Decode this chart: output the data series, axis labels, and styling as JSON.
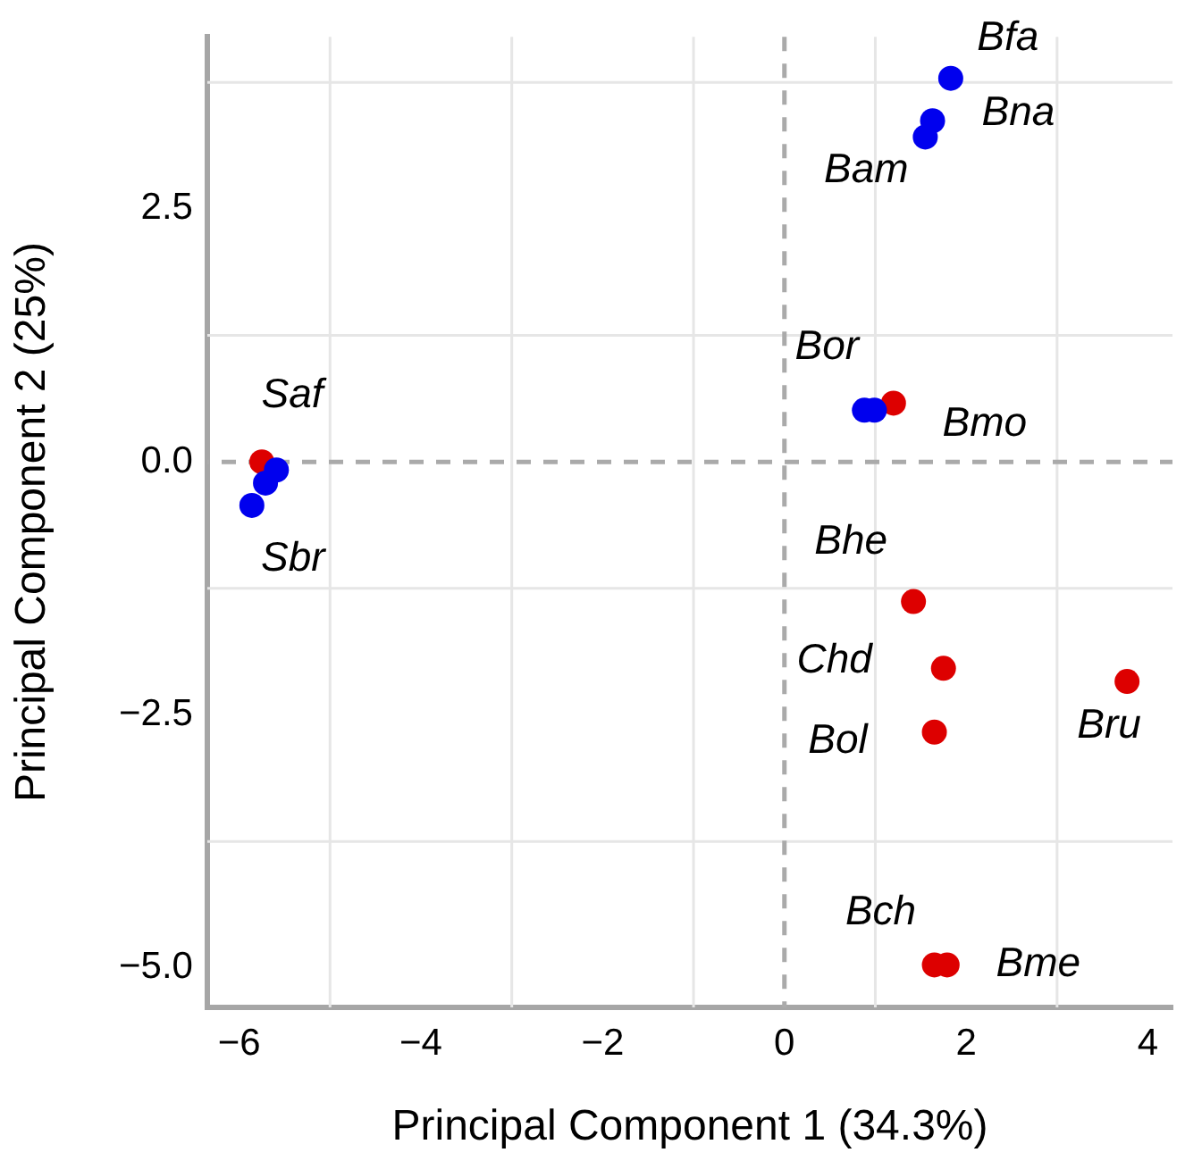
{
  "chart_data": {
    "type": "scatter",
    "xlabel": "Principal Component 1 (34.3%)",
    "ylabel": "Principal Component 2 (25%)",
    "xlim": [
      -6.35,
      4.27
    ],
    "ylim": [
      -5.39,
      4.2
    ],
    "xticks": [
      {
        "value": -6,
        "label": "−6"
      },
      {
        "value": -4,
        "label": "−4"
      },
      {
        "value": -2,
        "label": "−2"
      },
      0,
      2,
      4
    ],
    "yticks": [
      {
        "value": -5,
        "label": "−5.0"
      },
      {
        "value": -2.5,
        "label": "−2.5"
      },
      {
        "value": 0,
        "label": "0.0"
      },
      2.5
    ],
    "grid": true,
    "legend": false,
    "marker": "circle",
    "series": [
      {
        "color": "#0000ee",
        "x": [
          1.83,
          1.63,
          1.55,
          0.88,
          0.99,
          -5.59,
          -5.71,
          -5.86
        ],
        "values": [
          3.79,
          3.37,
          3.21,
          0.51,
          0.51,
          -0.08,
          -0.21,
          -0.43
        ]
      },
      {
        "color": "#dd0000",
        "x": [
          1.2,
          -5.75,
          1.42,
          1.75,
          3.77,
          1.65,
          1.65,
          1.79
        ],
        "values": [
          0.58,
          0.0,
          -1.38,
          -2.04,
          -2.17,
          -2.67,
          -4.97,
          -4.97
        ]
      }
    ],
    "ref_lines": [
      {
        "axis": "x",
        "value": 0,
        "color": "#aaaaaa",
        "line_style": "dashed"
      },
      {
        "axis": "y",
        "value": 0,
        "color": "#aaaaaa",
        "line_style": "dashed"
      }
    ],
    "annotations": [
      {
        "text": "Bfa",
        "x": 1.83,
        "y": 3.79
      },
      {
        "text": "Bna",
        "x": 1.63,
        "y": 3.37
      },
      {
        "text": "Bam",
        "x": 1.55,
        "y": 3.21
      },
      {
        "text": "Bor",
        "x": 0.88,
        "y": 0.51
      },
      {
        "text": "Bmo",
        "x": 1.2,
        "y": 0.58
      },
      {
        "text": "Saf",
        "x": -5.75,
        "y": 0.0
      },
      {
        "text": "Sbr",
        "x": -5.86,
        "y": -0.43
      },
      {
        "text": "Bhe",
        "x": 1.42,
        "y": -1.38
      },
      {
        "text": "Chd",
        "x": 1.75,
        "y": -2.04
      },
      {
        "text": "Bru",
        "x": 3.77,
        "y": -2.17
      },
      {
        "text": "Bol",
        "x": 1.65,
        "y": -2.67
      },
      {
        "text": "Bch",
        "x": 1.65,
        "y": -4.97
      },
      {
        "text": "Bme",
        "x": 1.79,
        "y": -4.97
      }
    ]
  }
}
